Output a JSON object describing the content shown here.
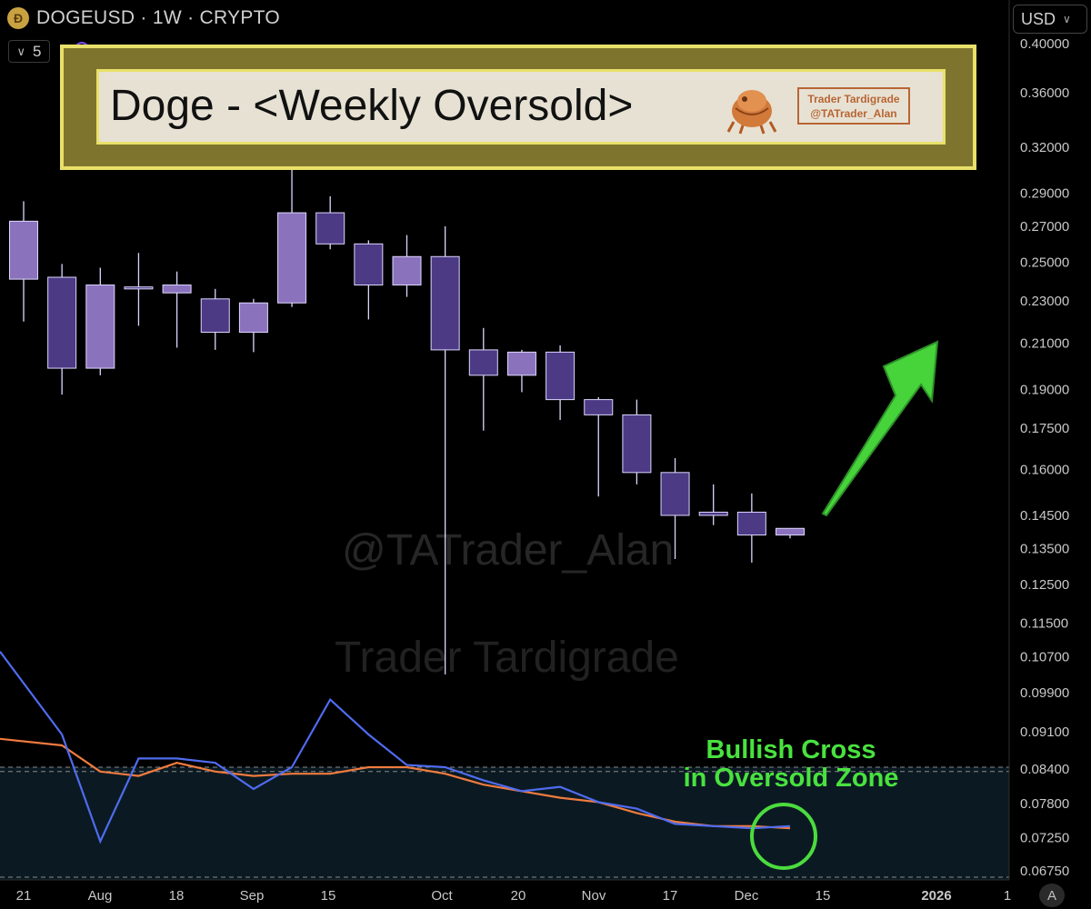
{
  "header": {
    "symbol_line": "DOGEUSD · 1W · CRYPTO",
    "interval_value": "5",
    "currency": "USD",
    "currency_options_icon": "chevron-down-icon",
    "coin_icon": "doge-coin-icon",
    "auto_scale_label": "A"
  },
  "banner": {
    "title": "Doge - <Weekly Oversold>",
    "logo_line1": "Trader Tardigrade",
    "logo_line2": "@TATrader_Alan",
    "background_color": "#7f742e",
    "border_color": "#e9e06a"
  },
  "watermarks": [
    "@TATrader_Alan",
    "Trader Tardigrade"
  ],
  "annotation": {
    "line1": "Bullish Cross",
    "line2": "in Oversold Zone",
    "color": "#49e23f"
  },
  "chart_data": [
    {
      "type": "candlestick",
      "series": "DOGEUSD weekly",
      "y_scale": "log",
      "ylim": [
        0.0675,
        0.4
      ],
      "price_ticks": [
        "0.40000",
        "0.36000",
        "0.32000",
        "0.29000",
        "0.27000",
        "0.25000",
        "0.23000",
        "0.21000",
        "0.19000",
        "0.17500",
        "0.16000",
        "0.14500",
        "0.13500",
        "0.12500",
        "0.11500",
        "0.10700",
        "0.09900",
        "0.09100",
        "0.08400",
        "0.07800",
        "0.07250",
        "0.06750"
      ],
      "x_ticks": [
        "21",
        "Aug",
        "18",
        "Sep",
        "15",
        "Oct",
        "20",
        "Nov",
        "17",
        "Dec",
        "15",
        "2026",
        "1"
      ],
      "colors": {
        "up": "#8b72bd",
        "down": "#4c3a84",
        "border": "#ddd6ff"
      },
      "candles": [
        {
          "o": 0.241,
          "h": 0.285,
          "l": 0.22,
          "c": 0.273
        },
        {
          "o": 0.242,
          "h": 0.249,
          "l": 0.188,
          "c": 0.199
        },
        {
          "o": 0.199,
          "h": 0.247,
          "l": 0.196,
          "c": 0.238
        },
        {
          "o": 0.237,
          "h": 0.255,
          "l": 0.218,
          "c": 0.236
        },
        {
          "o": 0.234,
          "h": 0.245,
          "l": 0.208,
          "c": 0.238
        },
        {
          "o": 0.231,
          "h": 0.236,
          "l": 0.207,
          "c": 0.215
        },
        {
          "o": 0.215,
          "h": 0.231,
          "l": 0.206,
          "c": 0.229
        },
        {
          "o": 0.229,
          "h": 0.307,
          "l": 0.227,
          "c": 0.278
        },
        {
          "o": 0.278,
          "h": 0.288,
          "l": 0.257,
          "c": 0.26
        },
        {
          "o": 0.26,
          "h": 0.262,
          "l": 0.221,
          "c": 0.238
        },
        {
          "o": 0.238,
          "h": 0.265,
          "l": 0.232,
          "c": 0.253
        },
        {
          "o": 0.253,
          "h": 0.27,
          "l": 0.103,
          "c": 0.207
        },
        {
          "o": 0.207,
          "h": 0.217,
          "l": 0.174,
          "c": 0.196
        },
        {
          "o": 0.196,
          "h": 0.207,
          "l": 0.189,
          "c": 0.206
        },
        {
          "o": 0.206,
          "h": 0.209,
          "l": 0.178,
          "c": 0.186
        },
        {
          "o": 0.186,
          "h": 0.187,
          "l": 0.151,
          "c": 0.18
        },
        {
          "o": 0.18,
          "h": 0.186,
          "l": 0.155,
          "c": 0.159
        },
        {
          "o": 0.159,
          "h": 0.164,
          "l": 0.132,
          "c": 0.145
        },
        {
          "o": 0.146,
          "h": 0.155,
          "l": 0.142,
          "c": 0.145
        },
        {
          "o": 0.146,
          "h": 0.152,
          "l": 0.131,
          "c": 0.139
        },
        {
          "o": 0.139,
          "h": 0.141,
          "l": 0.138,
          "c": 0.141
        }
      ]
    },
    {
      "type": "line",
      "panel": "oscillator",
      "note": "oscillator values in relative units 0-100 (no scale printed)",
      "oversold_zone": [
        0,
        40
      ],
      "levels": [
        0,
        38,
        40
      ],
      "colors": {
        "fast": "#4f6cf0",
        "slow": "#f07b3f",
        "zone": "#0b1a22"
      },
      "fast": [
        93,
        55,
        6,
        44,
        44,
        42,
        30,
        40,
        71,
        55,
        41,
        40,
        34,
        29,
        31,
        24,
        21,
        14,
        13,
        12,
        13
      ],
      "slow": [
        53,
        50,
        38,
        36,
        42,
        38,
        36,
        37,
        37,
        40,
        40,
        37,
        32,
        29,
        26,
        24,
        19,
        15,
        13,
        13,
        12
      ]
    }
  ]
}
